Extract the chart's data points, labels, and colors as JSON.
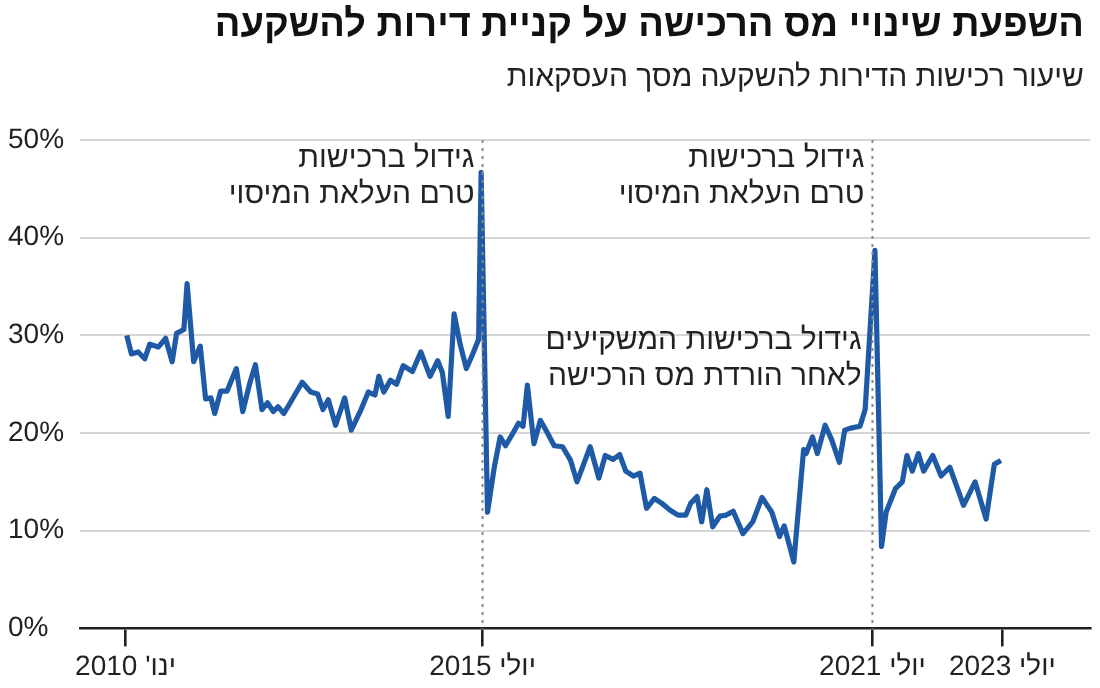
{
  "chart_data": {
    "type": "line",
    "title": "השפעת שינויי מס הרכישה על קניית דירות להשקעה",
    "subtitle": "שיעור רכישות הדירות להשקעה מסך העסקאות",
    "x": [
      "2010-01-08",
      "2010-02-03",
      "2010-03-13",
      "2010-04-19",
      "2010-05-17",
      "2010-07-04",
      "2010-08-14",
      "2010-09-20",
      "2010-10-15",
      "2010-11-25",
      "2010-12-13",
      "2011-01-19",
      "2011-02-25",
      "2011-03-27",
      "2011-04-26",
      "2011-05-17",
      "2011-06-20",
      "2011-07-26",
      "2011-09-16",
      "2011-10-22",
      "2011-12-02",
      "2012-01-01",
      "2012-02-07",
      "2012-03-09",
      "2012-04-11",
      "2012-05-07",
      "2012-06-09",
      "2012-07-15",
      "2012-09-20",
      "2012-11-07",
      "2012-12-16",
      "2013-01-15",
      "2013-02-14",
      "2013-03-27",
      "2013-05-17",
      "2013-06-23",
      "2013-08-17",
      "2013-09-27",
      "2013-11-03",
      "2013-11-25",
      "2013-12-23",
      "2014-01-29",
      "2014-03-05",
      "2014-04-11",
      "2014-06-02",
      "2014-07-19",
      "2014-09-09",
      "2014-10-22",
      "2014-11-17",
      "2014-12-20",
      "2015-01-22",
      "2015-02-25",
      "2015-04-01",
      "2015-05-07",
      "2015-06-09",
      "2015-06-23",
      "2015-07-29",
      "2015-09-05",
      "2015-10-08",
      "2015-11-07",
      "2015-12-13",
      "2016-01-19",
      "2016-02-14",
      "2016-03-09",
      "2016-04-15",
      "2016-05-21",
      "2016-06-27",
      "2016-08-07",
      "2016-09-23",
      "2016-11-07",
      "2016-12-13",
      "2017-01-19",
      "2017-02-25",
      "2017-04-15",
      "2017-05-21",
      "2017-07-04",
      "2017-08-10",
      "2017-09-13",
      "2017-10-26",
      "2017-12-02",
      "2018-01-08",
      "2018-02-21",
      "2018-04-04",
      "2018-05-21",
      "2018-07-04",
      "2018-08-17",
      "2018-09-13",
      "2018-10-19",
      "2018-11-14",
      "2018-12-13",
      "2019-01-15",
      "2019-02-25",
      "2019-04-01",
      "2019-05-10",
      "2019-07-04",
      "2019-08-28",
      "2019-10-19",
      "2019-12-13",
      "2020-01-26",
      "2020-02-21",
      "2020-04-15",
      "2020-06-09",
      "2020-06-23",
      "2020-07-29",
      "2020-08-25",
      "2020-10-08",
      "2020-11-14",
      "2020-12-27",
      "2021-01-26",
      "2021-02-28",
      "2021-04-22",
      "2021-05-21",
      "2021-07-15",
      "2021-08-21",
      "2021-09-16",
      "2021-11-07",
      "2021-12-16",
      "2022-01-11",
      "2022-02-10",
      "2022-03-16",
      "2022-04-15",
      "2022-06-05",
      "2022-07-22",
      "2022-09-09",
      "2022-11-25",
      "2023-01-29",
      "2023-04-01",
      "2023-05-17",
      "2023-06-23"
    ],
    "series": [
      {
        "color": "#1f5aa6",
        "values": [
          30.0,
          28.1,
          28.3,
          27.6,
          29.1,
          28.8,
          29.7,
          27.3,
          30.2,
          30.6,
          35.3,
          27.3,
          28.9,
          23.5,
          23.6,
          22.0,
          24.3,
          24.3,
          26.6,
          22.2,
          25.2,
          27.0,
          22.4,
          23.1,
          22.2,
          22.7,
          22.0,
          23.1,
          25.2,
          24.2,
          24.0,
          22.4,
          23.4,
          20.8,
          23.6,
          20.3,
          22.4,
          24.2,
          23.9,
          25.8,
          24.2,
          25.4,
          25.0,
          26.9,
          26.3,
          28.3,
          25.8,
          27.4,
          26.2,
          21.7,
          32.2,
          29.1,
          26.6,
          28.1,
          29.6,
          46.7,
          11.9,
          16.5,
          19.6,
          18.7,
          19.8,
          21.0,
          20.7,
          24.9,
          18.9,
          21.3,
          20.1,
          18.7,
          18.6,
          17.2,
          15.0,
          16.8,
          18.6,
          15.4,
          17.7,
          17.3,
          17.8,
          16.1,
          15.6,
          15.9,
          12.3,
          13.3,
          12.8,
          12.1,
          11.6,
          11.6,
          12.8,
          13.5,
          10.9,
          14.2,
          10.4,
          11.5,
          11.6,
          12.0,
          9.7,
          10.9,
          13.4,
          11.9,
          9.4,
          10.5,
          6.8,
          18.3,
          17.9,
          19.6,
          17.9,
          20.8,
          19.3,
          17.0,
          20.3,
          20.5,
          20.7,
          22.4,
          38.7,
          8.4,
          11.9,
          14.3,
          15.0,
          17.7,
          16.1,
          17.9,
          16.1,
          17.7,
          15.6,
          16.5,
          12.6,
          15.0,
          11.2,
          16.8,
          17.2
        ]
      }
    ],
    "xlim": [
      "2009-04-20",
      "2024-11-05"
    ],
    "xticks": [
      {
        "value": "2010-01",
        "label": "ינו' 2010"
      },
      {
        "value": "2015-07",
        "label": "יולי 2015"
      },
      {
        "value": "2021-07",
        "label": "יולי 2021"
      },
      {
        "value": "2023-07",
        "label": "יולי 2023"
      }
    ],
    "ylim": [
      0,
      50
    ],
    "yticks": [
      {
        "value": 0,
        "label": "0%"
      },
      {
        "value": 10,
        "label": "10%"
      },
      {
        "value": 20,
        "label": "20%"
      },
      {
        "value": 30,
        "label": "30%"
      },
      {
        "value": 40,
        "label": "40%"
      },
      {
        "value": 50,
        "label": "50%"
      }
    ],
    "grid": "y",
    "ref_lines": [
      {
        "axis": "x",
        "value": "2015-07",
        "label": "גידול ברכישות\nטרם העלאת המיסוי",
        "color": "#888888",
        "line_style": "dotted"
      },
      {
        "axis": "x",
        "value": "2021-07",
        "label": "גידול ברכישות\nטרם העלאת המיסוי",
        "color": "#888888",
        "line_style": "dotted"
      }
    ],
    "annotations": [
      {
        "text": "גידול ברכישות המשקיעים\nלאחר הורדת מס הרכישה",
        "x": "2021-05",
        "y": 31
      }
    ]
  }
}
